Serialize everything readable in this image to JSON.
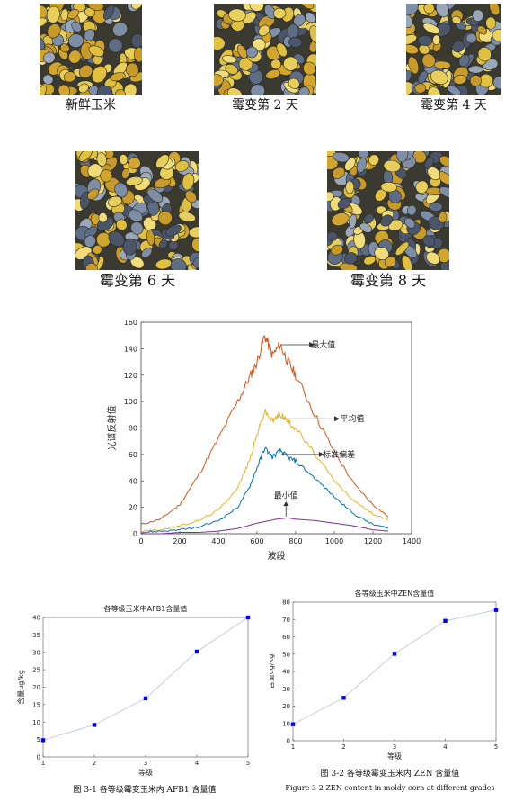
{
  "photos": {
    "captions": [
      "新鲜玉米",
      "霉变第 2 天",
      "霉变第 4 天",
      "霉变第 6 天",
      "霉变第 8 天"
    ]
  },
  "spectrum_chart": {
    "chart_data": {
      "type": "line",
      "xlabel": "波段",
      "ylabel": "光谱反射值",
      "xlim": [
        0,
        1400
      ],
      "ylim": [
        0,
        160
      ],
      "xticks": [
        0,
        200,
        400,
        600,
        800,
        1000,
        1200,
        1400
      ],
      "yticks": [
        0,
        20,
        40,
        60,
        80,
        100,
        120,
        140,
        160
      ],
      "grid": false,
      "series": [
        {
          "name": "最大值",
          "color": "#d95319",
          "x": [
            0,
            100,
            200,
            300,
            400,
            500,
            560,
            600,
            640,
            680,
            720,
            760,
            800,
            900,
            1000,
            1100,
            1200,
            1280
          ],
          "values": [
            7,
            11,
            22,
            45,
            72,
            100,
            118,
            130,
            150,
            135,
            143,
            130,
            120,
            90,
            62,
            38,
            22,
            13
          ]
        },
        {
          "name": "平均值",
          "color": "#edb120",
          "x": [
            0,
            100,
            200,
            300,
            400,
            500,
            560,
            600,
            640,
            680,
            720,
            760,
            800,
            900,
            1000,
            1100,
            1200,
            1280
          ],
          "values": [
            2,
            3,
            6,
            10,
            18,
            35,
            55,
            75,
            93,
            85,
            91,
            85,
            80,
            60,
            40,
            25,
            15,
            10
          ]
        },
        {
          "name": "标准偏差",
          "color": "#0072bd",
          "x": [
            0,
            100,
            200,
            300,
            400,
            500,
            560,
            600,
            640,
            680,
            720,
            760,
            800,
            900,
            1000,
            1100,
            1200,
            1280
          ],
          "values": [
            1,
            2,
            3,
            5,
            10,
            20,
            35,
            50,
            65,
            58,
            63,
            58,
            55,
            42,
            28,
            15,
            7,
            4
          ]
        },
        {
          "name": "最小值",
          "color": "#7e2f8e",
          "x": [
            0,
            100,
            200,
            300,
            400,
            500,
            600,
            700,
            760,
            800,
            900,
            1000,
            1100,
            1200,
            1280
          ],
          "values": [
            0,
            0,
            1,
            1,
            2,
            4,
            8,
            11,
            12,
            11,
            10,
            8,
            6,
            3,
            2
          ]
        }
      ]
    }
  },
  "afb1_chart": {
    "chart_data": {
      "type": "line",
      "title": "各等级玉米中AFB1含量值",
      "xlabel": "等级",
      "ylabel": "含量ug/kg",
      "xlim": [
        1,
        5
      ],
      "ylim": [
        0,
        40
      ],
      "xticks": [
        1,
        2,
        3,
        4,
        5
      ],
      "yticks": [
        0,
        5,
        10,
        15,
        20,
        25,
        30,
        35,
        40
      ],
      "grid": false,
      "x": [
        1,
        2,
        3,
        4,
        5
      ],
      "values": [
        4.8,
        9.2,
        16.8,
        30.2,
        40
      ]
    },
    "caption": "图 3-1  各等级霉变玉米内 AFB1 含量值"
  },
  "zen_chart": {
    "chart_data": {
      "type": "line",
      "title": "各等级玉米中ZEN含量值",
      "xlabel": "等级",
      "ylabel": "含量ug/kg",
      "xlim": [
        1,
        5
      ],
      "ylim": [
        0,
        80
      ],
      "xticks": [
        1,
        2,
        3,
        4,
        5
      ],
      "yticks": [
        0,
        10,
        20,
        30,
        40,
        50,
        60,
        70,
        80
      ],
      "grid": false,
      "x": [
        1,
        2,
        3,
        4,
        5
      ],
      "values": [
        9.5,
        24.8,
        50.2,
        69.2,
        75.5
      ]
    },
    "caption": "图 3-2  各等级霉变玉米内 ZEN 含量值",
    "caption_en": "Figure 3-2 ZEN content in moldy corn at different grades"
  },
  "colors": {
    "marker": "#0000ff",
    "mini_line": "#b8c4d8",
    "kernel_yellow": "#d8b23a",
    "kernel_blue": "#55647c"
  }
}
